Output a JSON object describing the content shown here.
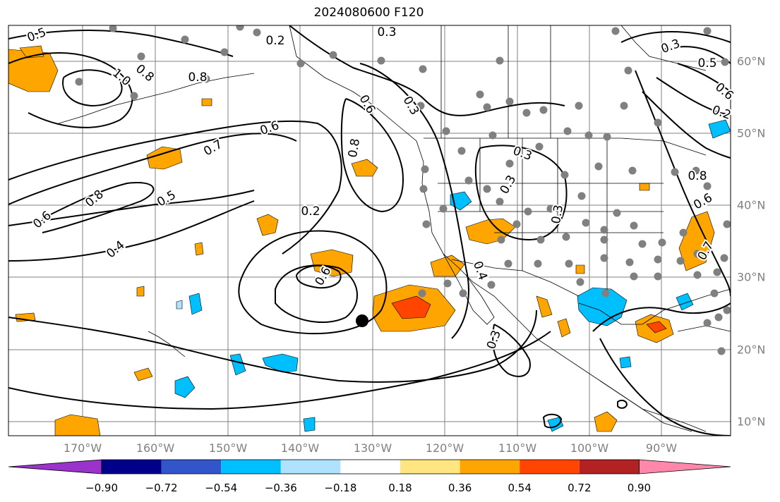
{
  "title": "2024080600 F120",
  "longitude_labels": [
    "170°W",
    "160°W",
    "150°W",
    "140°W",
    "130°W",
    "120°W",
    "110°W",
    "100°W",
    "90°W"
  ],
  "latitude_labels": [
    "60°N",
    "50°N",
    "40°N",
    "30°N",
    "20°N",
    "10°N"
  ],
  "contour_labels": [
    "0.5",
    "1.0",
    "0.8",
    "0.8",
    "0.2",
    "0.3",
    "0.3",
    "0.7",
    "0.6",
    "0.5",
    "0.4",
    "0.6",
    "0.8",
    "0.6",
    "0.8",
    "0.6",
    "0.2",
    "0.3",
    "0.3",
    "0.3",
    "0.3",
    "0.4",
    "0.7",
    "0.6",
    "0.5",
    "0.3",
    "0.2",
    "0.6",
    "0.8"
  ],
  "colorbar": {
    "tick_labels": [
      "−0.90",
      "−0.72",
      "−0.54",
      "−0.36",
      "−0.18",
      "0.18",
      "0.36",
      "0.54",
      "0.72",
      "0.90"
    ],
    "colors": [
      "#9933cc",
      "#00008b",
      "#3355cc",
      "#00bfff",
      "#aee2ff",
      "#ffffff",
      "#ffe680",
      "#ffa500",
      "#ff4500",
      "#b22222",
      "#ff88aa"
    ]
  },
  "colors": {
    "positive_fill": "#ffa500",
    "strong_positive_fill": "#ff4500",
    "negative_fill": "#00bfff",
    "light_negative_fill": "#aee2ff",
    "station_dot": "#808080",
    "contour": "#000000",
    "grid": "#808080"
  }
}
